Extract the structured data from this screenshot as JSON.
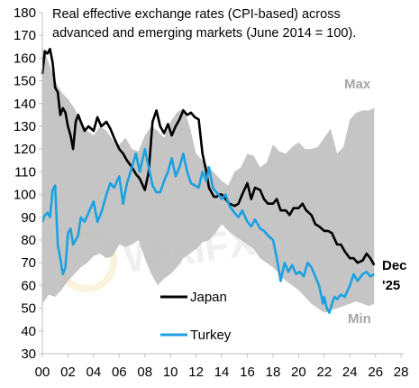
{
  "chart_data": {
    "type": "area",
    "title": "Real effective exchange rates (CPI-based) across advanced and emerging markets (June 2014 = 100).",
    "title_lines": [
      "Real effective exchange rates (CPI-based) across",
      "advanced and emerging markets (June 2014 = 100)."
    ],
    "xlabel": "",
    "ylabel": "",
    "xlim": [
      2000,
      2028.2
    ],
    "ylim": [
      30,
      180
    ],
    "x_ticks": [
      0,
      2,
      4,
      6,
      8,
      10,
      12,
      14,
      16,
      18,
      20,
      22,
      24,
      26,
      28
    ],
    "x_tick_labels": [
      "00",
      "02",
      "04",
      "06",
      "08",
      "10",
      "12",
      "14",
      "16",
      "18",
      "20",
      "22",
      "24",
      "26",
      "28"
    ],
    "y_ticks": [
      30,
      40,
      50,
      60,
      70,
      80,
      90,
      100,
      110,
      120,
      130,
      140,
      150,
      160,
      170,
      180
    ],
    "grid": false,
    "colors": {
      "range_band": "#c0c0c0",
      "japan": "#000000",
      "turkey": "#1ba1e2",
      "annotation": "#a6a6a6"
    },
    "range_band": {
      "name_upper": "Max",
      "name_lower": "Min",
      "x": [
        2000.0,
        2000.5,
        2001.0,
        2001.5,
        2002.0,
        2002.5,
        2003.0,
        2003.5,
        2004.0,
        2004.5,
        2005.0,
        2005.5,
        2006.0,
        2006.5,
        2007.0,
        2007.5,
        2008.0,
        2008.5,
        2009.0,
        2009.5,
        2010.0,
        2010.5,
        2011.0,
        2011.5,
        2012.0,
        2012.5,
        2013.0,
        2013.5,
        2014.0,
        2014.5,
        2015.0,
        2015.5,
        2016.0,
        2016.5,
        2017.0,
        2017.5,
        2018.0,
        2018.5,
        2019.0,
        2019.5,
        2020.0,
        2020.5,
        2021.0,
        2021.5,
        2022.0,
        2022.5,
        2023.0,
        2023.5,
        2024.0,
        2024.5,
        2025.0,
        2025.5,
        2025.9
      ],
      "max": [
        165,
        158,
        150,
        145,
        142,
        138,
        132,
        128,
        126,
        130,
        128,
        124,
        122,
        125,
        120,
        119,
        126,
        130,
        128,
        125,
        132,
        136,
        138,
        130,
        118,
        115,
        112,
        109,
        106,
        104,
        110,
        112,
        118,
        117,
        112,
        114,
        122,
        119,
        118,
        121,
        123,
        120,
        120,
        121,
        125,
        129,
        118,
        121,
        133,
        136,
        137,
        137,
        138
      ],
      "min": [
        52,
        56,
        55,
        58,
        62,
        65,
        68,
        70,
        73,
        74,
        72,
        73,
        78,
        77,
        78,
        80,
        72,
        65,
        60,
        63,
        65,
        68,
        72,
        74,
        76,
        79,
        80,
        83,
        87,
        84,
        82,
        80,
        78,
        76,
        72,
        70,
        68,
        65,
        62,
        60,
        58,
        55,
        52,
        50,
        48,
        49,
        50,
        51,
        52,
        53,
        52,
        51,
        52
      ]
    },
    "series": [
      {
        "name": "Japan",
        "x": [
          2000.0,
          2000.2,
          2000.4,
          2000.6,
          2000.8,
          2001.0,
          2001.2,
          2001.4,
          2001.6,
          2001.8,
          2002.0,
          2002.2,
          2002.4,
          2002.6,
          2002.8,
          2003.0,
          2003.3,
          2003.6,
          2004.0,
          2004.3,
          2004.6,
          2005.0,
          2005.3,
          2005.6,
          2006.0,
          2006.3,
          2006.6,
          2007.0,
          2007.3,
          2007.6,
          2008.0,
          2008.3,
          2008.6,
          2008.9,
          2009.2,
          2009.5,
          2009.8,
          2010.1,
          2010.4,
          2010.7,
          2011.0,
          2011.3,
          2011.6,
          2011.9,
          2012.2,
          2012.5,
          2012.8,
          2013.0,
          2013.2,
          2013.4,
          2013.6,
          2013.8,
          2014.0,
          2014.3,
          2014.6,
          2015.0,
          2015.3,
          2015.6,
          2016.0,
          2016.3,
          2016.6,
          2017.0,
          2017.3,
          2017.6,
          2018.0,
          2018.3,
          2018.6,
          2019.0,
          2019.3,
          2019.6,
          2020.0,
          2020.3,
          2020.6,
          2021.0,
          2021.3,
          2021.6,
          2022.0,
          2022.3,
          2022.6,
          2023.0,
          2023.3,
          2023.6,
          2024.0,
          2024.3,
          2024.6,
          2025.0,
          2025.3,
          2025.6,
          2025.9
        ],
        "values": [
          153,
          163,
          162,
          164,
          158,
          147,
          145,
          135,
          138,
          136,
          130,
          126,
          120,
          132,
          135,
          132,
          128,
          130,
          128,
          134,
          130,
          132,
          129,
          125,
          120,
          118,
          115,
          112,
          109,
          107,
          102,
          110,
          132,
          137,
          130,
          127,
          131,
          126,
          130,
          133,
          137,
          135,
          136,
          134,
          133,
          118,
          110,
          103,
          101,
          99,
          99,
          100,
          100,
          98,
          96,
          95,
          96,
          100,
          105,
          98,
          103,
          102,
          98,
          96,
          96,
          98,
          93,
          93,
          91,
          94,
          94,
          96,
          93,
          91,
          87,
          86,
          84,
          84,
          83,
          78,
          78,
          75,
          72,
          72,
          70,
          71,
          74,
          72,
          69
        ]
      },
      {
        "name": "Turkey",
        "x": [
          2000.0,
          2000.2,
          2000.4,
          2000.6,
          2000.8,
          2001.0,
          2001.2,
          2001.4,
          2001.6,
          2001.8,
          2002.0,
          2002.2,
          2002.4,
          2002.6,
          2002.8,
          2003.0,
          2003.3,
          2003.6,
          2004.0,
          2004.3,
          2004.6,
          2005.0,
          2005.3,
          2005.6,
          2006.0,
          2006.3,
          2006.6,
          2007.0,
          2007.3,
          2007.6,
          2008.0,
          2008.3,
          2008.6,
          2008.9,
          2009.2,
          2009.5,
          2009.8,
          2010.1,
          2010.4,
          2010.7,
          2011.0,
          2011.3,
          2011.6,
          2011.9,
          2012.2,
          2012.5,
          2012.8,
          2013.0,
          2013.3,
          2013.6,
          2014.0,
          2014.3,
          2014.6,
          2015.0,
          2015.3,
          2015.6,
          2016.0,
          2016.3,
          2016.6,
          2017.0,
          2017.3,
          2017.6,
          2018.0,
          2018.3,
          2018.6,
          2018.9,
          2019.2,
          2019.5,
          2019.8,
          2020.1,
          2020.4,
          2020.7,
          2021.0,
          2021.3,
          2021.6,
          2021.9,
          2022.0,
          2022.2,
          2022.4,
          2022.6,
          2022.8,
          2023.0,
          2023.3,
          2023.6,
          2024.0,
          2024.3,
          2024.6,
          2025.0,
          2025.3,
          2025.6,
          2025.9
        ],
        "values": [
          88,
          91,
          92,
          90,
          102,
          104,
          78,
          72,
          65,
          68,
          83,
          85,
          78,
          80,
          82,
          90,
          88,
          92,
          97,
          88,
          92,
          100,
          105,
          103,
          108,
          96,
          105,
          112,
          118,
          110,
          120,
          112,
          104,
          101,
          101,
          106,
          110,
          116,
          108,
          112,
          118,
          110,
          105,
          104,
          103,
          110,
          106,
          112,
          103,
          101,
          98,
          100,
          95,
          92,
          90,
          93,
          88,
          86,
          89,
          85,
          84,
          82,
          80,
          72,
          62,
          70,
          66,
          69,
          65,
          66,
          64,
          70,
          68,
          64,
          60,
          52,
          55,
          50,
          48,
          52,
          55,
          54,
          56,
          55,
          60,
          65,
          62,
          65,
          66,
          64,
          65
        ]
      }
    ],
    "annotations": {
      "max_label": "Max",
      "min_label": "Min",
      "end_label_line1": "Dec",
      "end_label_line2": "'25",
      "watermark": "WikiFX"
    },
    "legend": {
      "placement": "bottom-center",
      "items": [
        {
          "name": "Japan",
          "color": "#000000"
        },
        {
          "name": "Turkey",
          "color": "#1ba1e2"
        }
      ]
    }
  }
}
